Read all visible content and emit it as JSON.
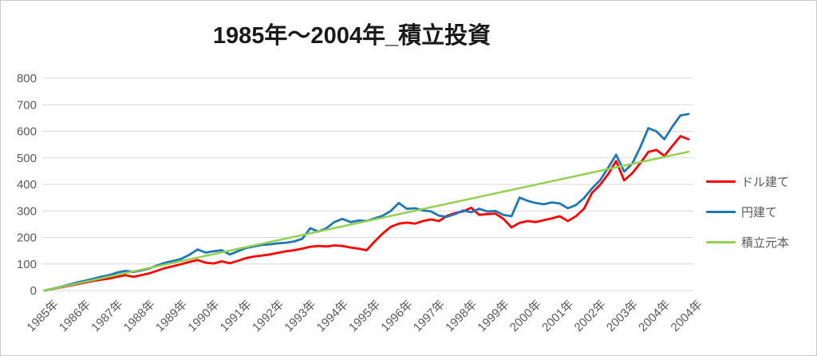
{
  "chart_data": {
    "type": "line",
    "title": "1985年～2004年_積立投資",
    "xlabel": "",
    "ylabel": "",
    "ylim": [
      0,
      800
    ],
    "y_ticks": [
      0,
      100,
      200,
      300,
      400,
      500,
      600,
      700,
      800
    ],
    "xlim_years": [
      1985,
      2005
    ],
    "x_tick_labels": [
      "1985年",
      "1986年",
      "1987年",
      "1988年",
      "1989年",
      "1990年",
      "1991年",
      "1992年",
      "1993年",
      "1994年",
      "1995年",
      "1996年",
      "1997年",
      "1998年",
      "1999年",
      "2000年",
      "2001年",
      "2002年",
      "2003年",
      "2004年",
      "2004年"
    ],
    "grid": true,
    "legend_position": "right",
    "axis_text_color": "#595959",
    "gridline_color": "#d9d9d9",
    "x": [
      1985,
      1985.25,
      1985.5,
      1985.75,
      1986,
      1986.25,
      1986.5,
      1986.75,
      1987,
      1987.25,
      1987.5,
      1987.75,
      1988,
      1988.25,
      1988.5,
      1988.75,
      1989,
      1989.25,
      1989.5,
      1989.75,
      1990,
      1990.25,
      1990.5,
      1990.75,
      1991,
      1991.25,
      1991.5,
      1991.75,
      1992,
      1992.25,
      1992.5,
      1992.75,
      1993,
      1993.25,
      1993.5,
      1993.75,
      1994,
      1994.25,
      1994.5,
      1994.75,
      1995,
      1995.25,
      1995.5,
      1995.75,
      1996,
      1996.25,
      1996.5,
      1996.75,
      1997,
      1997.25,
      1997.5,
      1997.75,
      1998,
      1998.25,
      1998.5,
      1998.75,
      1999,
      1999.25,
      1999.5,
      1999.75,
      2000,
      2000.25,
      2000.5,
      2000.75,
      2001,
      2001.25,
      2001.5,
      2001.75,
      2002,
      2002.25,
      2002.5,
      2002.75,
      2003,
      2003.25,
      2003.5,
      2003.75,
      2004,
      2004.25,
      2004.5,
      2004.75,
      2005
    ],
    "series": [
      {
        "name": "ドル建て",
        "color": "#FF0000",
        "values": [
          0,
          6,
          12,
          18,
          24,
          30,
          36,
          41,
          45,
          52,
          58,
          52,
          58,
          65,
          75,
          85,
          92,
          100,
          108,
          115,
          105,
          102,
          110,
          103,
          112,
          122,
          128,
          132,
          136,
          142,
          148,
          152,
          158,
          165,
          168,
          166,
          170,
          168,
          162,
          158,
          152,
          185,
          215,
          240,
          252,
          256,
          252,
          262,
          268,
          262,
          282,
          292,
          298,
          312,
          285,
          288,
          290,
          270,
          238,
          255,
          262,
          258,
          265,
          272,
          280,
          262,
          280,
          308,
          368,
          398,
          438,
          488,
          415,
          442,
          480,
          522,
          530,
          507,
          545,
          582,
          570
        ]
      },
      {
        "name": "円建て",
        "color": "#1F77B4",
        "values": [
          0,
          7,
          14,
          22,
          30,
          37,
          44,
          52,
          58,
          68,
          74,
          70,
          76,
          83,
          95,
          105,
          112,
          120,
          135,
          155,
          143,
          148,
          152,
          136,
          148,
          160,
          166,
          172,
          174,
          178,
          180,
          185,
          195,
          235,
          222,
          235,
          258,
          270,
          258,
          264,
          262,
          272,
          282,
          300,
          330,
          308,
          310,
          302,
          298,
          282,
          278,
          288,
          302,
          295,
          308,
          298,
          300,
          285,
          280,
          350,
          338,
          330,
          325,
          332,
          328,
          310,
          322,
          348,
          385,
          415,
          462,
          512,
          448,
          478,
          540,
          612,
          600,
          570,
          618,
          660,
          665
        ]
      },
      {
        "name": "積立元本",
        "color": "#92D050",
        "x": [
          1985,
          2005
        ],
        "values": [
          0,
          523
        ]
      }
    ]
  },
  "legend": [
    {
      "label": "ドル建て",
      "color": "#FF0000"
    },
    {
      "label": "円建て",
      "color": "#1F77B4"
    },
    {
      "label": "積立元本",
      "color": "#92D050"
    }
  ]
}
